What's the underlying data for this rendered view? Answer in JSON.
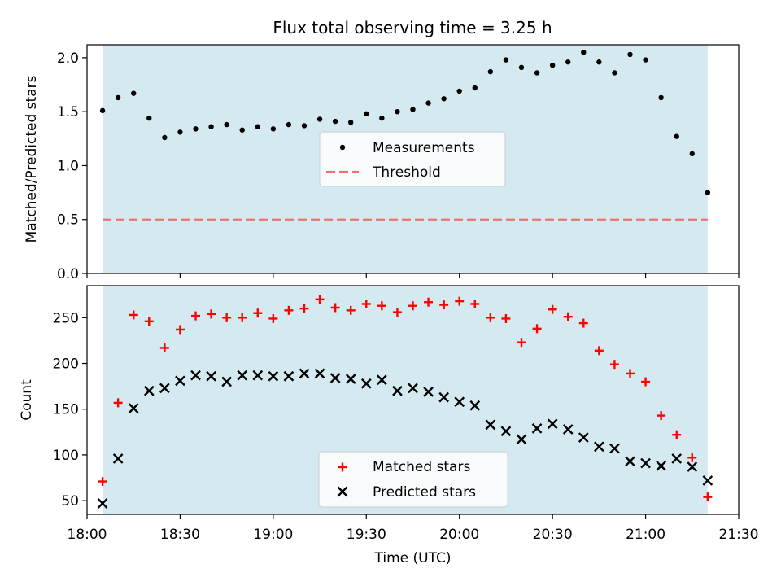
{
  "title": "Flux total observing time = 3.25 h",
  "colors": {
    "band": "#d4eaf0",
    "matched": "#ff0000",
    "predicted": "#000000",
    "threshold": "#f07070"
  },
  "chart_data": [
    {
      "type": "scatter",
      "ylabel": "Matched/Predicted stars",
      "ylim": [
        0,
        2.12
      ],
      "yticks": [
        "0.0",
        "0.5",
        "1.0",
        "1.5",
        "2.0"
      ],
      "xlim": [
        "18:00",
        "21:30"
      ],
      "shaded_range": [
        "18:05",
        "21:20"
      ],
      "threshold": 0.5,
      "legend_position": "center",
      "series": [
        {
          "name": "Measurements",
          "x": [
            "18:05",
            "18:10",
            "18:15",
            "18:20",
            "18:25",
            "18:30",
            "18:35",
            "18:40",
            "18:45",
            "18:50",
            "18:55",
            "19:00",
            "19:05",
            "19:10",
            "19:15",
            "19:20",
            "19:25",
            "19:30",
            "19:35",
            "19:40",
            "19:45",
            "19:50",
            "19:55",
            "20:00",
            "20:05",
            "20:10",
            "20:15",
            "20:20",
            "20:25",
            "20:30",
            "20:35",
            "20:40",
            "20:45",
            "20:50",
            "20:55",
            "21:00",
            "21:05",
            "21:10",
            "21:15",
            "21:20"
          ],
          "y": [
            1.51,
            1.63,
            1.67,
            1.44,
            1.26,
            1.31,
            1.34,
            1.36,
            1.38,
            1.33,
            1.36,
            1.34,
            1.38,
            1.37,
            1.43,
            1.41,
            1.4,
            1.48,
            1.44,
            1.5,
            1.52,
            1.58,
            1.62,
            1.69,
            1.72,
            1.87,
            1.98,
            1.91,
            1.86,
            1.93,
            1.96,
            2.05,
            1.96,
            1.86,
            2.03,
            1.98,
            1.63,
            1.27,
            1.11,
            0.75
          ]
        },
        {
          "name": "Threshold",
          "y": 0.5,
          "style": "dashed"
        }
      ]
    },
    {
      "type": "scatter",
      "ylabel": "Count",
      "xlabel": "Time (UTC)",
      "ylim": [
        35,
        285
      ],
      "yticks": [
        "50",
        "100",
        "150",
        "200",
        "250"
      ],
      "xticks": [
        "18:00",
        "18:30",
        "19:00",
        "19:30",
        "20:00",
        "20:30",
        "21:00",
        "21:30"
      ],
      "xlim": [
        "18:00",
        "21:30"
      ],
      "shaded_range": [
        "18:05",
        "21:20"
      ],
      "legend_position": "lower center",
      "series": [
        {
          "name": "Matched stars",
          "marker": "+",
          "x": [
            "18:05",
            "18:10",
            "18:15",
            "18:20",
            "18:25",
            "18:30",
            "18:35",
            "18:40",
            "18:45",
            "18:50",
            "18:55",
            "19:00",
            "19:05",
            "19:10",
            "19:15",
            "19:20",
            "19:25",
            "19:30",
            "19:35",
            "19:40",
            "19:45",
            "19:50",
            "19:55",
            "20:00",
            "20:05",
            "20:10",
            "20:15",
            "20:20",
            "20:25",
            "20:30",
            "20:35",
            "20:40",
            "20:45",
            "20:50",
            "20:55",
            "21:00",
            "21:05",
            "21:10",
            "21:15",
            "21:20"
          ],
          "y": [
            71,
            157,
            253,
            246,
            217,
            237,
            252,
            254,
            250,
            250,
            255,
            249,
            258,
            260,
            270,
            261,
            258,
            265,
            263,
            256,
            263,
            267,
            264,
            268,
            265,
            250,
            249,
            223,
            238,
            259,
            251,
            244,
            214,
            199,
            189,
            180,
            143,
            122,
            97,
            54
          ]
        },
        {
          "name": "Predicted stars",
          "marker": "x",
          "x": [
            "18:05",
            "18:10",
            "18:15",
            "18:20",
            "18:25",
            "18:30",
            "18:35",
            "18:40",
            "18:45",
            "18:50",
            "18:55",
            "19:00",
            "19:05",
            "19:10",
            "19:15",
            "19:20",
            "19:25",
            "19:30",
            "19:35",
            "19:40",
            "19:45",
            "19:50",
            "19:55",
            "20:00",
            "20:05",
            "20:10",
            "20:15",
            "20:20",
            "20:25",
            "20:30",
            "20:35",
            "20:40",
            "20:45",
            "20:50",
            "20:55",
            "21:00",
            "21:05",
            "21:10",
            "21:15",
            "21:20"
          ],
          "y": [
            47,
            96,
            151,
            170,
            173,
            181,
            187,
            186,
            180,
            187,
            187,
            186,
            186,
            189,
            189,
            184,
            183,
            178,
            182,
            170,
            173,
            169,
            163,
            158,
            154,
            133,
            126,
            117,
            129,
            134,
            128,
            119,
            109,
            107,
            93,
            91,
            88,
            96,
            87,
            72
          ]
        }
      ]
    }
  ]
}
